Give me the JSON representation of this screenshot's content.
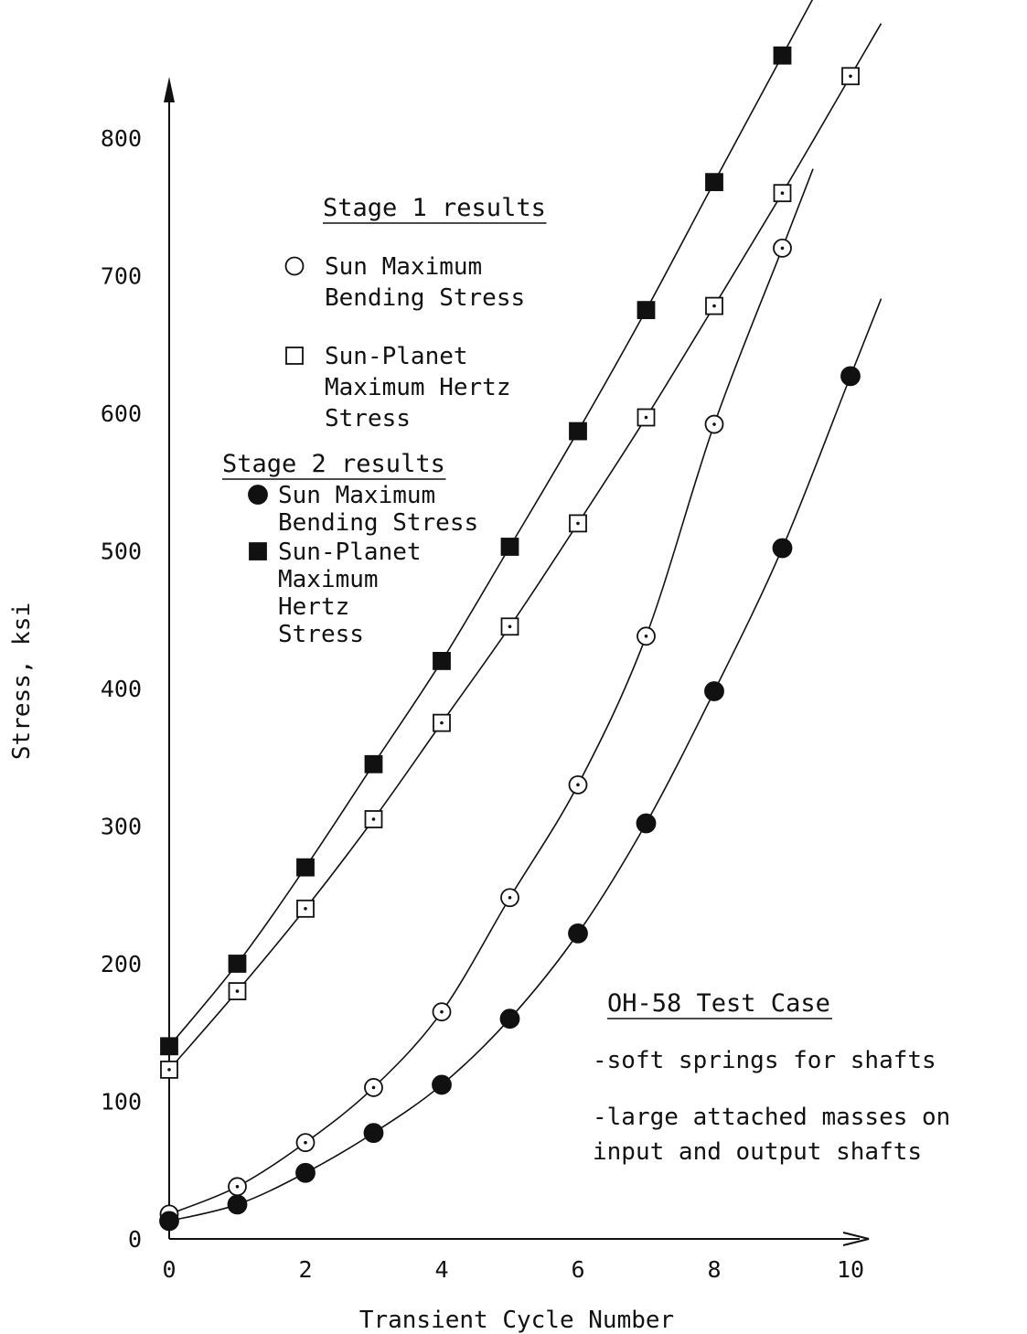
{
  "chart_data": {
    "type": "scatter",
    "xlabel": "Transient Cycle Number",
    "ylabel": "Stress, ksi",
    "xlim": [
      0,
      10
    ],
    "ylim": [
      0,
      880
    ],
    "x_ticks": [
      "0",
      "2",
      "4",
      "6",
      "8",
      "10"
    ],
    "y_ticks": [
      "0",
      "100",
      "200",
      "300",
      "400",
      "500",
      "600",
      "700",
      "800"
    ],
    "grid": false,
    "stage1": {
      "heading": "Stage 1 results",
      "legend": [
        {
          "marker": "open-circle",
          "lines": [
            "Sun Maximum",
            "Bending Stress"
          ]
        },
        {
          "marker": "open-square",
          "lines": [
            "Sun-Planet",
            "Maximum Hertz",
            "Stress"
          ]
        }
      ]
    },
    "stage2": {
      "heading": "Stage 2 results",
      "legend": [
        {
          "marker": "filled-circle",
          "lines": [
            "Sun Maximum",
            "Bending Stress"
          ]
        },
        {
          "marker": "filled-square",
          "lines": [
            "Sun-Planet",
            "Maximum",
            "Hertz",
            "Stress"
          ]
        }
      ]
    },
    "note": {
      "heading": "OH-58 Test Case",
      "items": [
        {
          "lines": [
            "-soft springs for shafts"
          ]
        },
        {
          "lines": [
            "-large attached masses on",
            " input and output shafts"
          ]
        }
      ]
    },
    "series": [
      {
        "marker": "filled-square",
        "x": [
          0,
          1,
          2,
          3,
          4,
          5,
          6,
          7,
          8,
          9
        ],
        "values": [
          140,
          200,
          270,
          345,
          420,
          503,
          587,
          675,
          768,
          860
        ]
      },
      {
        "marker": "open-square",
        "x": [
          0,
          1,
          2,
          3,
          4,
          5,
          6,
          7,
          8,
          9,
          10
        ],
        "values": [
          123,
          180,
          240,
          305,
          375,
          445,
          520,
          597,
          678,
          760,
          845
        ]
      },
      {
        "marker": "open-circle",
        "x": [
          0,
          1,
          2,
          3,
          4,
          5,
          6,
          7,
          8,
          9
        ],
        "values": [
          18,
          38,
          70,
          110,
          165,
          248,
          330,
          438,
          592,
          720
        ]
      },
      {
        "marker": "filled-circle",
        "x": [
          0,
          1,
          2,
          3,
          4,
          5,
          6,
          7,
          8,
          9,
          10
        ],
        "values": [
          13,
          25,
          48,
          77,
          112,
          160,
          222,
          302,
          398,
          502,
          627
        ]
      }
    ]
  }
}
